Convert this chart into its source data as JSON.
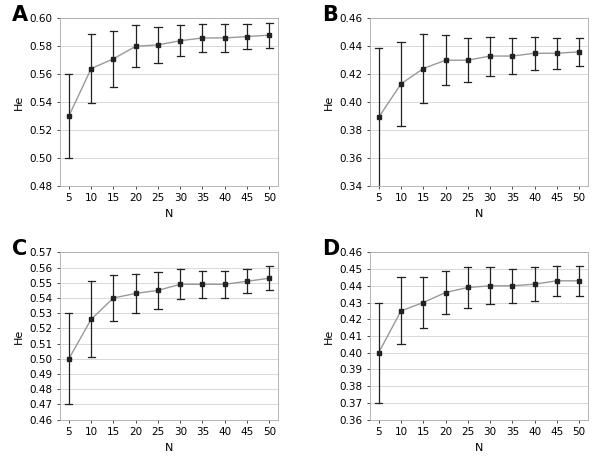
{
  "x": [
    5,
    10,
    15,
    20,
    25,
    30,
    35,
    40,
    45,
    50
  ],
  "panels": [
    {
      "label": "A",
      "ylabel": "He",
      "ylim": [
        0.48,
        0.6
      ],
      "yticks": [
        0.48,
        0.5,
        0.52,
        0.54,
        0.56,
        0.58,
        0.6
      ],
      "mean": [
        0.53,
        0.564,
        0.571,
        0.58,
        0.581,
        0.584,
        0.586,
        0.586,
        0.587,
        0.588
      ],
      "sd": [
        0.03,
        0.025,
        0.02,
        0.015,
        0.013,
        0.011,
        0.01,
        0.01,
        0.009,
        0.009
      ]
    },
    {
      "label": "B",
      "ylabel": "He",
      "ylim": [
        0.34,
        0.46
      ],
      "yticks": [
        0.34,
        0.36,
        0.38,
        0.4,
        0.42,
        0.44,
        0.46
      ],
      "mean": [
        0.389,
        0.413,
        0.424,
        0.43,
        0.43,
        0.433,
        0.433,
        0.435,
        0.435,
        0.436
      ],
      "sd": [
        0.05,
        0.03,
        0.025,
        0.018,
        0.016,
        0.014,
        0.013,
        0.012,
        0.011,
        0.01
      ]
    },
    {
      "label": "C",
      "ylabel": "He",
      "ylim": [
        0.46,
        0.57
      ],
      "yticks": [
        0.46,
        0.47,
        0.48,
        0.49,
        0.5,
        0.51,
        0.52,
        0.53,
        0.54,
        0.55,
        0.56,
        0.57
      ],
      "mean": [
        0.5,
        0.526,
        0.54,
        0.543,
        0.545,
        0.549,
        0.549,
        0.549,
        0.551,
        0.553
      ],
      "sd": [
        0.03,
        0.025,
        0.015,
        0.013,
        0.012,
        0.01,
        0.009,
        0.009,
        0.008,
        0.008
      ]
    },
    {
      "label": "D",
      "ylabel": "He",
      "ylim": [
        0.36,
        0.46
      ],
      "yticks": [
        0.36,
        0.37,
        0.38,
        0.39,
        0.4,
        0.41,
        0.42,
        0.43,
        0.44,
        0.45,
        0.46
      ],
      "mean": [
        0.4,
        0.425,
        0.43,
        0.436,
        0.439,
        0.44,
        0.44,
        0.441,
        0.443,
        0.443
      ],
      "sd": [
        0.03,
        0.02,
        0.015,
        0.013,
        0.012,
        0.011,
        0.01,
        0.01,
        0.009,
        0.009
      ]
    }
  ],
  "xlabel": "N",
  "line_color": "#999999",
  "marker_color": "#222222",
  "grid_color": "#d8d8d8",
  "bg_color": "#ffffff",
  "fig_bg_color": "#ffffff",
  "label_fontsize": 15,
  "axis_fontsize": 8,
  "tick_fontsize": 7.5
}
